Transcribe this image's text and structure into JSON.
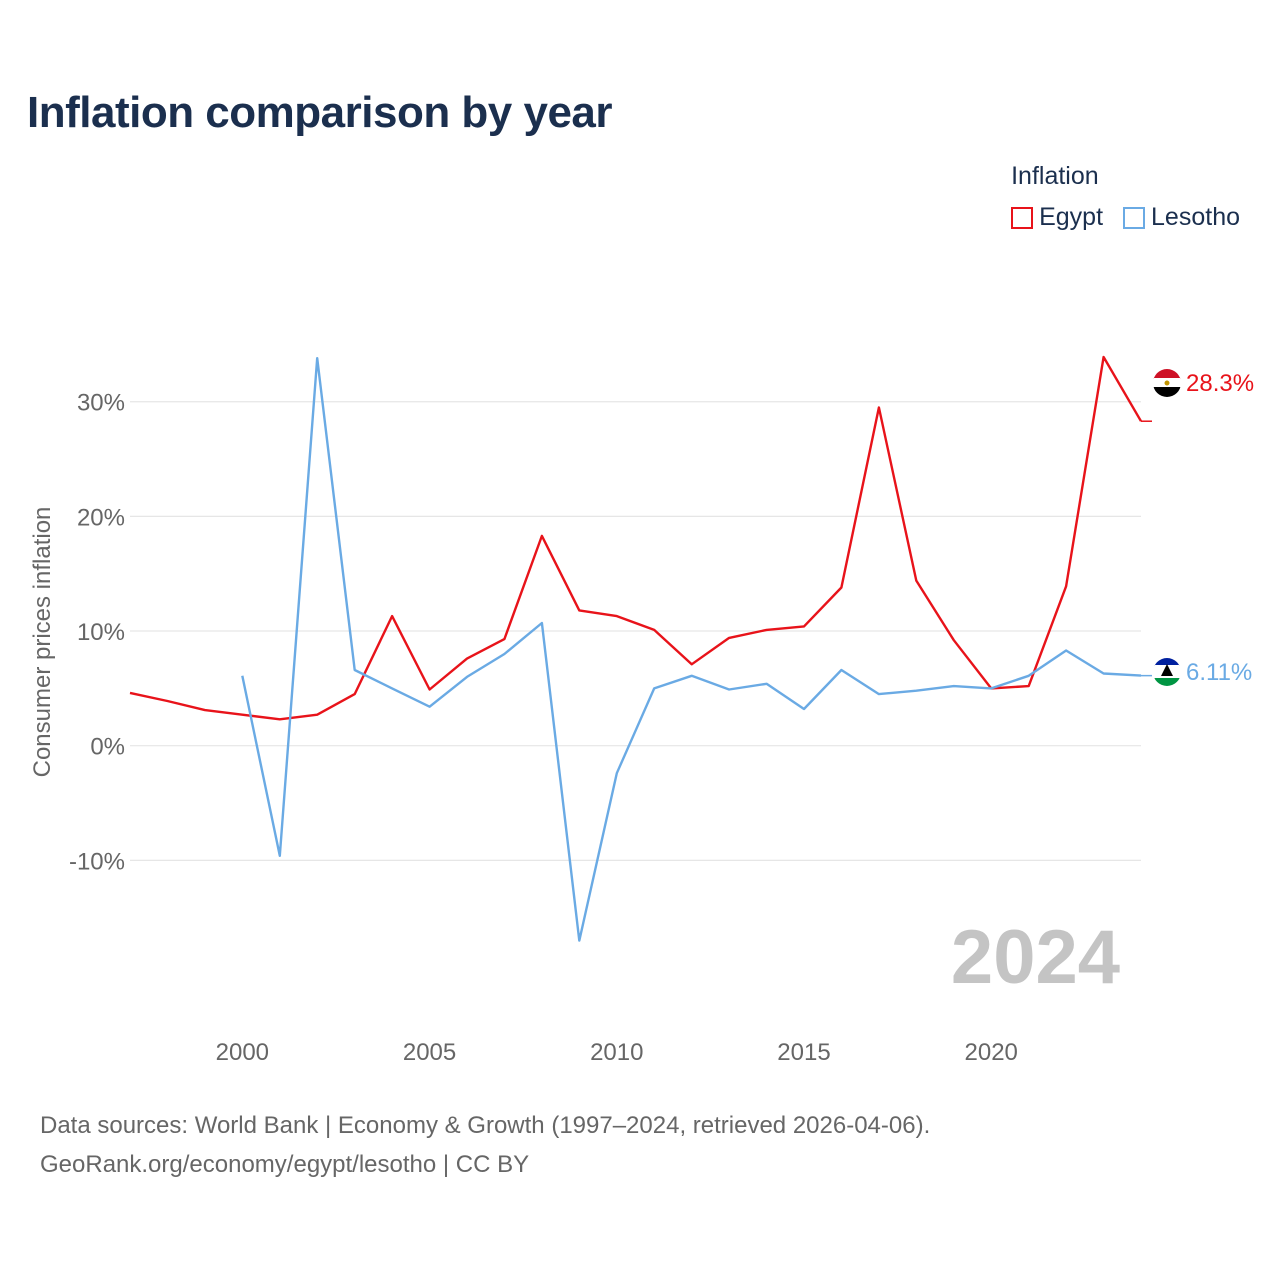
{
  "chart_data": {
    "type": "line",
    "title": "Inflation comparison by year",
    "xlabel": "",
    "ylabel": "Consumer prices inflation",
    "xlim": [
      1997,
      2024
    ],
    "ylim": [
      -20,
      38
    ],
    "xticks": [
      2000,
      2005,
      2010,
      2015,
      2020
    ],
    "xtick_labels": [
      "2000",
      "2005",
      "2010",
      "2015",
      "2020"
    ],
    "yticks": [
      -10,
      0,
      10,
      20,
      30
    ],
    "ytick_labels": [
      "-10%",
      "0%",
      "10%",
      "20%",
      "30%"
    ],
    "grid": true,
    "legend_title": "Inflation",
    "legend_position": "top-right",
    "year_label": "2024",
    "series": [
      {
        "name": "Egypt",
        "color": "#e8131a",
        "end_label": "28.3%",
        "flag": "egypt-flag-icon",
        "x": [
          1997,
          1998,
          1999,
          2000,
          2001,
          2002,
          2003,
          2004,
          2005,
          2006,
          2007,
          2008,
          2009,
          2010,
          2011,
          2012,
          2013,
          2014,
          2015,
          2016,
          2017,
          2018,
          2019,
          2020,
          2021,
          2022,
          2023,
          2024
        ],
        "values": [
          4.6,
          3.9,
          3.1,
          2.7,
          2.3,
          2.7,
          4.5,
          11.3,
          4.9,
          7.6,
          9.3,
          18.3,
          11.8,
          11.3,
          10.1,
          7.1,
          9.4,
          10.1,
          10.4,
          13.8,
          29.5,
          14.4,
          9.2,
          5.0,
          5.2,
          13.9,
          33.9,
          28.3
        ]
      },
      {
        "name": "Lesotho",
        "color": "#6aaae4",
        "end_label": "6.11%",
        "flag": "lesotho-flag-icon",
        "x": [
          2000,
          2001,
          2002,
          2003,
          2004,
          2005,
          2006,
          2007,
          2008,
          2009,
          2010,
          2011,
          2012,
          2013,
          2014,
          2015,
          2016,
          2017,
          2018,
          2019,
          2020,
          2021,
          2022,
          2023,
          2024
        ],
        "values": [
          6.1,
          -9.6,
          33.8,
          6.6,
          5.0,
          3.4,
          6.0,
          8.0,
          10.7,
          -17.0,
          -2.4,
          5.0,
          6.1,
          4.9,
          5.4,
          3.2,
          6.6,
          4.5,
          4.8,
          5.2,
          5.0,
          6.1,
          8.3,
          6.3,
          6.11
        ]
      }
    ]
  },
  "source": {
    "line1": "Data sources: World Bank | Economy & Growth (1997–2024, retrieved 2026-04-06).",
    "line2": "GeoRank.org/economy/egypt/lesotho | CC BY"
  }
}
